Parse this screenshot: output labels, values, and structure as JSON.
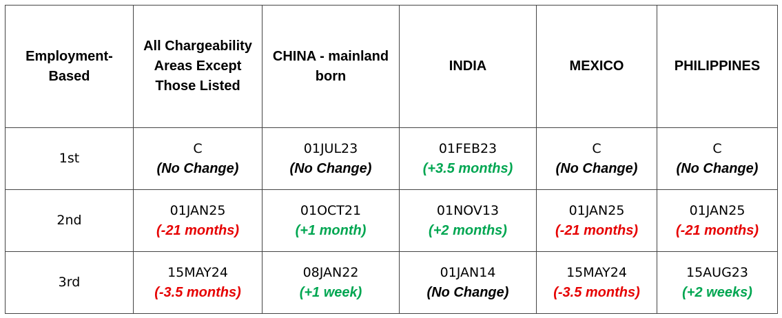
{
  "table": {
    "header": [
      "Employment-Based",
      "All Chargeability Areas Except Those Listed",
      "CHINA - mainland born",
      "INDIA",
      "MEXICO",
      "PHILIPPINES"
    ],
    "rows": [
      {
        "label": "1st",
        "cells": [
          {
            "date": "C",
            "note": "(No Change)",
            "note_color": "#000000"
          },
          {
            "date": "01JUL23",
            "note": "(No Change)",
            "note_color": "#000000"
          },
          {
            "date": "01FEB23",
            "note": "(+3.5 months)",
            "note_color": "#00a651"
          },
          {
            "date": "C",
            "note": "(No Change)",
            "note_color": "#000000"
          },
          {
            "date": "C",
            "note": "(No Change)",
            "note_color": "#000000"
          }
        ]
      },
      {
        "label": "2nd",
        "cells": [
          {
            "date": "01JAN25",
            "note": "(-21 months)",
            "note_color": "#e60000"
          },
          {
            "date": "01OCT21",
            "note": "(+1 month)",
            "note_color": "#00a651"
          },
          {
            "date": "01NOV13",
            "note": "(+2 months)",
            "note_color": "#00a651"
          },
          {
            "date": "01JAN25",
            "note": "(-21 months)",
            "note_color": "#e60000"
          },
          {
            "date": "01JAN25",
            "note": "(-21 months)",
            "note_color": "#e60000"
          }
        ]
      },
      {
        "label": "3rd",
        "cells": [
          {
            "date": "15MAY24",
            "note": "(-3.5 months)",
            "note_color": "#e60000"
          },
          {
            "date": "08JAN22",
            "note": "(+1 week)",
            "note_color": "#00a651"
          },
          {
            "date": "01JAN14",
            "note": "(No Change)",
            "note_color": "#000000"
          },
          {
            "date": "15MAY24",
            "note": "(-3.5 months)",
            "note_color": "#e60000"
          },
          {
            "date": "15AUG23",
            "note": "(+2 weeks)",
            "note_color": "#00a651"
          }
        ]
      }
    ]
  }
}
